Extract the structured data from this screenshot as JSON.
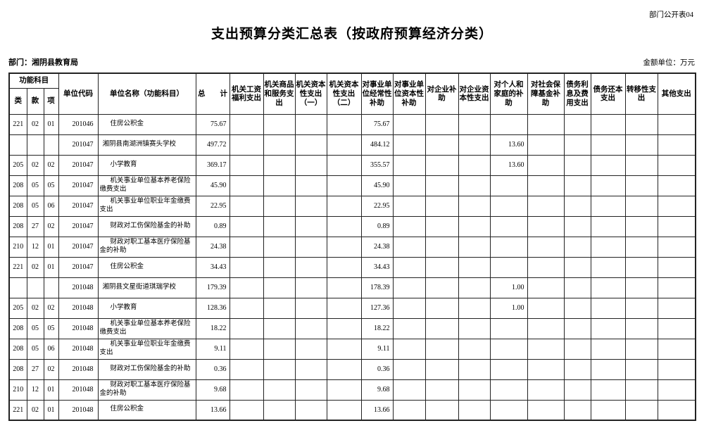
{
  "page": {
    "doc_label": "部门公开表04",
    "title": "支出预算分类汇总表（按政府预算经济分类）",
    "department_label": "部门：湘阴县教育局",
    "unit_label": "金额单位：万元",
    "colors": {
      "background": "#ffffff",
      "text": "#000000",
      "border": "#222222"
    }
  },
  "table": {
    "header": {
      "func_group": "功能科目",
      "lei": "类",
      "kuan": "款",
      "xiang": "项",
      "unit_code": "单位代码",
      "unit_name": "单位名称（功能科目）",
      "total": "总　　计",
      "econ_cols": [
        "机关工资福利支出",
        "机关商品和服务支出",
        "机关资本性支出（一）",
        "机关资本性支出（二）",
        "对事业单位经常性补助",
        "对事业单位资本性补助",
        "对企业补助",
        "对企业资本性支出",
        "对个人和家庭的补助",
        "对社会保障基金补助",
        "债务利息及费用支出",
        "债务还本支出",
        "转移性支出",
        "其他支出"
      ]
    },
    "rows": [
      {
        "lei": "221",
        "kuan": "02",
        "xiang": "01",
        "code": "201046",
        "name": "住房公积金",
        "total": "75.67",
        "vals": [
          "",
          "",
          "",
          "",
          "75.67",
          "",
          "",
          "",
          "",
          "",
          "",
          "",
          "",
          ""
        ]
      },
      {
        "lei": "",
        "kuan": "",
        "xiang": "",
        "code": "201047",
        "name": "湘阴县南湖洲镇赛头学校",
        "total": "497.72",
        "vals": [
          "",
          "",
          "",
          "",
          "484.12",
          "",
          "",
          "",
          "13.60",
          "",
          "",
          "",
          "",
          ""
        ]
      },
      {
        "lei": "205",
        "kuan": "02",
        "xiang": "02",
        "code": "201047",
        "name": "小学教育",
        "total": "369.17",
        "vals": [
          "",
          "",
          "",
          "",
          "355.57",
          "",
          "",
          "",
          "13.60",
          "",
          "",
          "",
          "",
          ""
        ]
      },
      {
        "lei": "208",
        "kuan": "05",
        "xiang": "05",
        "code": "201047",
        "name": "机关事业单位基本养老保险缴费支出",
        "total": "45.90",
        "vals": [
          "",
          "",
          "",
          "",
          "45.90",
          "",
          "",
          "",
          "",
          "",
          "",
          "",
          "",
          ""
        ]
      },
      {
        "lei": "208",
        "kuan": "05",
        "xiang": "06",
        "code": "201047",
        "name": "机关事业单位职业年金缴费支出",
        "total": "22.95",
        "vals": [
          "",
          "",
          "",
          "",
          "22.95",
          "",
          "",
          "",
          "",
          "",
          "",
          "",
          "",
          ""
        ]
      },
      {
        "lei": "208",
        "kuan": "27",
        "xiang": "02",
        "code": "201047",
        "name": "财政对工伤保险基金的补助",
        "total": "0.89",
        "vals": [
          "",
          "",
          "",
          "",
          "0.89",
          "",
          "",
          "",
          "",
          "",
          "",
          "",
          "",
          ""
        ]
      },
      {
        "lei": "210",
        "kuan": "12",
        "xiang": "01",
        "code": "201047",
        "name": "财政对职工基本医疗保险基金的补助",
        "total": "24.38",
        "vals": [
          "",
          "",
          "",
          "",
          "24.38",
          "",
          "",
          "",
          "",
          "",
          "",
          "",
          "",
          ""
        ]
      },
      {
        "lei": "221",
        "kuan": "02",
        "xiang": "01",
        "code": "201047",
        "name": "住房公积金",
        "total": "34.43",
        "vals": [
          "",
          "",
          "",
          "",
          "34.43",
          "",
          "",
          "",
          "",
          "",
          "",
          "",
          "",
          ""
        ]
      },
      {
        "lei": "",
        "kuan": "",
        "xiang": "",
        "code": "201048",
        "name": "湘阴县文星街道琪瑞学校",
        "total": "179.39",
        "vals": [
          "",
          "",
          "",
          "",
          "178.39",
          "",
          "",
          "",
          "1.00",
          "",
          "",
          "",
          "",
          ""
        ]
      },
      {
        "lei": "205",
        "kuan": "02",
        "xiang": "02",
        "code": "201048",
        "name": "小学教育",
        "total": "128.36",
        "vals": [
          "",
          "",
          "",
          "",
          "127.36",
          "",
          "",
          "",
          "1.00",
          "",
          "",
          "",
          "",
          ""
        ]
      },
      {
        "lei": "208",
        "kuan": "05",
        "xiang": "05",
        "code": "201048",
        "name": "机关事业单位基本养老保险缴费支出",
        "total": "18.22",
        "vals": [
          "",
          "",
          "",
          "",
          "18.22",
          "",
          "",
          "",
          "",
          "",
          "",
          "",
          "",
          ""
        ]
      },
      {
        "lei": "208",
        "kuan": "05",
        "xiang": "06",
        "code": "201048",
        "name": "机关事业单位职业年金缴费支出",
        "total": "9.11",
        "vals": [
          "",
          "",
          "",
          "",
          "9.11",
          "",
          "",
          "",
          "",
          "",
          "",
          "",
          "",
          ""
        ]
      },
      {
        "lei": "208",
        "kuan": "27",
        "xiang": "02",
        "code": "201048",
        "name": "财政对工伤保险基金的补助",
        "total": "0.36",
        "vals": [
          "",
          "",
          "",
          "",
          "0.36",
          "",
          "",
          "",
          "",
          "",
          "",
          "",
          "",
          ""
        ]
      },
      {
        "lei": "210",
        "kuan": "12",
        "xiang": "01",
        "code": "201048",
        "name": "财政对职工基本医疗保险基金的补助",
        "total": "9.68",
        "vals": [
          "",
          "",
          "",
          "",
          "9.68",
          "",
          "",
          "",
          "",
          "",
          "",
          "",
          "",
          ""
        ]
      },
      {
        "lei": "221",
        "kuan": "02",
        "xiang": "01",
        "code": "201048",
        "name": "住房公积金",
        "total": "13.66",
        "vals": [
          "",
          "",
          "",
          "",
          "13.66",
          "",
          "",
          "",
          "",
          "",
          "",
          "",
          "",
          ""
        ]
      }
    ]
  }
}
